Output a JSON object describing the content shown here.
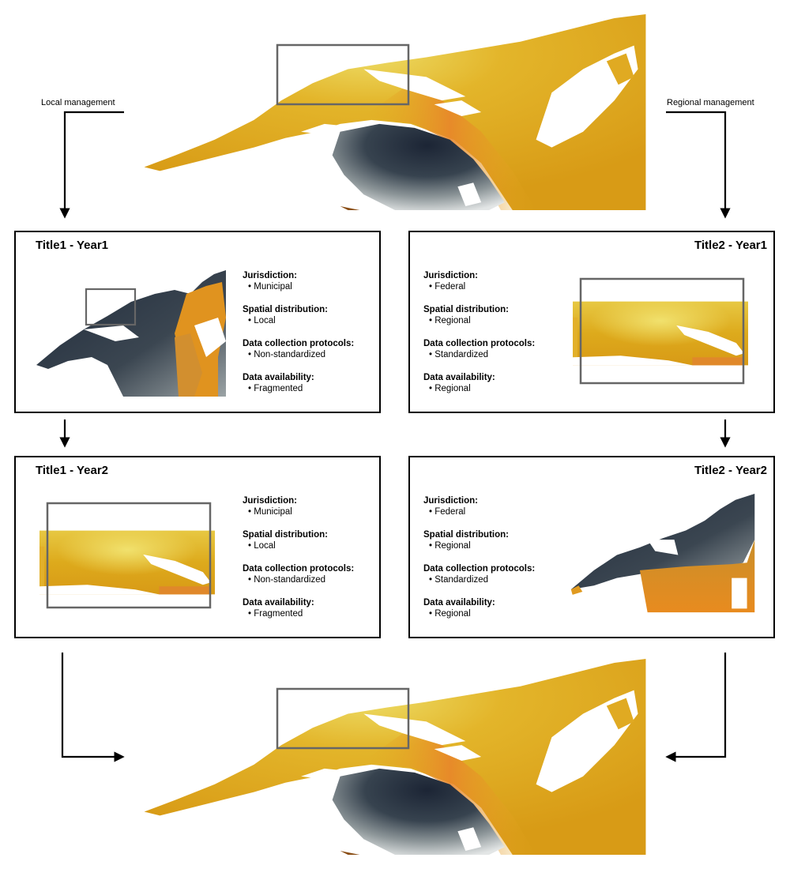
{
  "flow_labels": {
    "left": "Local management",
    "right": "Regional management"
  },
  "attribute_labels": {
    "jurisdiction": "Jurisdiction:",
    "spatial": "Spatial distribution:",
    "protocols": "Data collection protocols:",
    "availability": "Data availability:"
  },
  "panels": [
    {
      "title": "Title1 - Year1",
      "jurisdiction": "Municipal",
      "spatial": "Local",
      "protocols": "Non-standardized",
      "availability": "Fragmented"
    },
    {
      "title": "Title2 - Year1",
      "jurisdiction": "Federal",
      "spatial": "Regional",
      "protocols": "Standardized",
      "availability": "Regional"
    },
    {
      "title": "Title1 - Year2",
      "jurisdiction": "Municipal",
      "spatial": "Local",
      "protocols": "Non-standardized",
      "availability": "Fragmented"
    },
    {
      "title": "Title2 - Year2",
      "jurisdiction": "Federal",
      "spatial": "Regional",
      "protocols": "Standardized",
      "availability": "Regional"
    }
  ],
  "colors": {
    "gold": "#dba318",
    "orange": "#e58b22",
    "yellow": "#ecd75c",
    "navy": "#1f2a3a",
    "grey": "#c9cfd1",
    "frame": "#666666"
  }
}
